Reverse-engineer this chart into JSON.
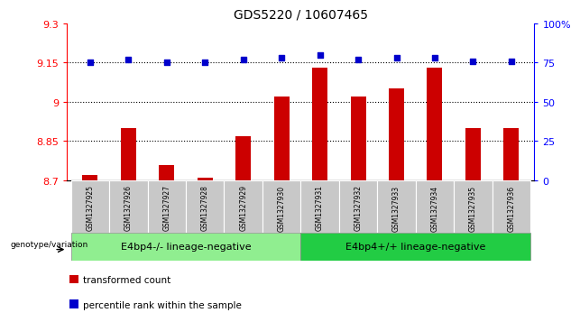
{
  "title": "GDS5220 / 10607465",
  "samples": [
    "GSM1327925",
    "GSM1327926",
    "GSM1327927",
    "GSM1327928",
    "GSM1327929",
    "GSM1327930",
    "GSM1327931",
    "GSM1327932",
    "GSM1327933",
    "GSM1327934",
    "GSM1327935",
    "GSM1327936"
  ],
  "bar_values": [
    8.72,
    8.9,
    8.76,
    8.71,
    8.87,
    9.02,
    9.13,
    9.02,
    9.05,
    9.13,
    8.9,
    8.9
  ],
  "percentile_values": [
    75,
    77,
    75,
    75,
    77,
    78,
    80,
    77,
    78,
    78,
    76,
    76
  ],
  "bar_color": "#cc0000",
  "dot_color": "#0000cc",
  "ylim_left": [
    8.7,
    9.3
  ],
  "ylim_right": [
    0,
    100
  ],
  "yticks_left": [
    8.7,
    8.85,
    9.0,
    9.15,
    9.3
  ],
  "yticks_right": [
    0,
    25,
    50,
    75,
    100
  ],
  "ytick_labels_left": [
    "8.7",
    "8.85",
    "9",
    "9.15",
    "9.3"
  ],
  "ytick_labels_right": [
    "0",
    "25",
    "50",
    "75",
    "100%"
  ],
  "hlines": [
    8.85,
    9.0,
    9.15
  ],
  "group1_label": "E4bp4-/- lineage-negative",
  "group2_label": "E4bp4+/+ lineage-negative",
  "group_row_label": "genotype/variation",
  "group1_color": "#90ee90",
  "group2_color": "#22cc44",
  "group1_n": 6,
  "group2_n": 6,
  "legend_bar_label": "transformed count",
  "legend_dot_label": "percentile rank within the sample",
  "plot_bg": "#ffffff",
  "tick_area_bg": "#c8c8c8",
  "bar_width": 0.4
}
